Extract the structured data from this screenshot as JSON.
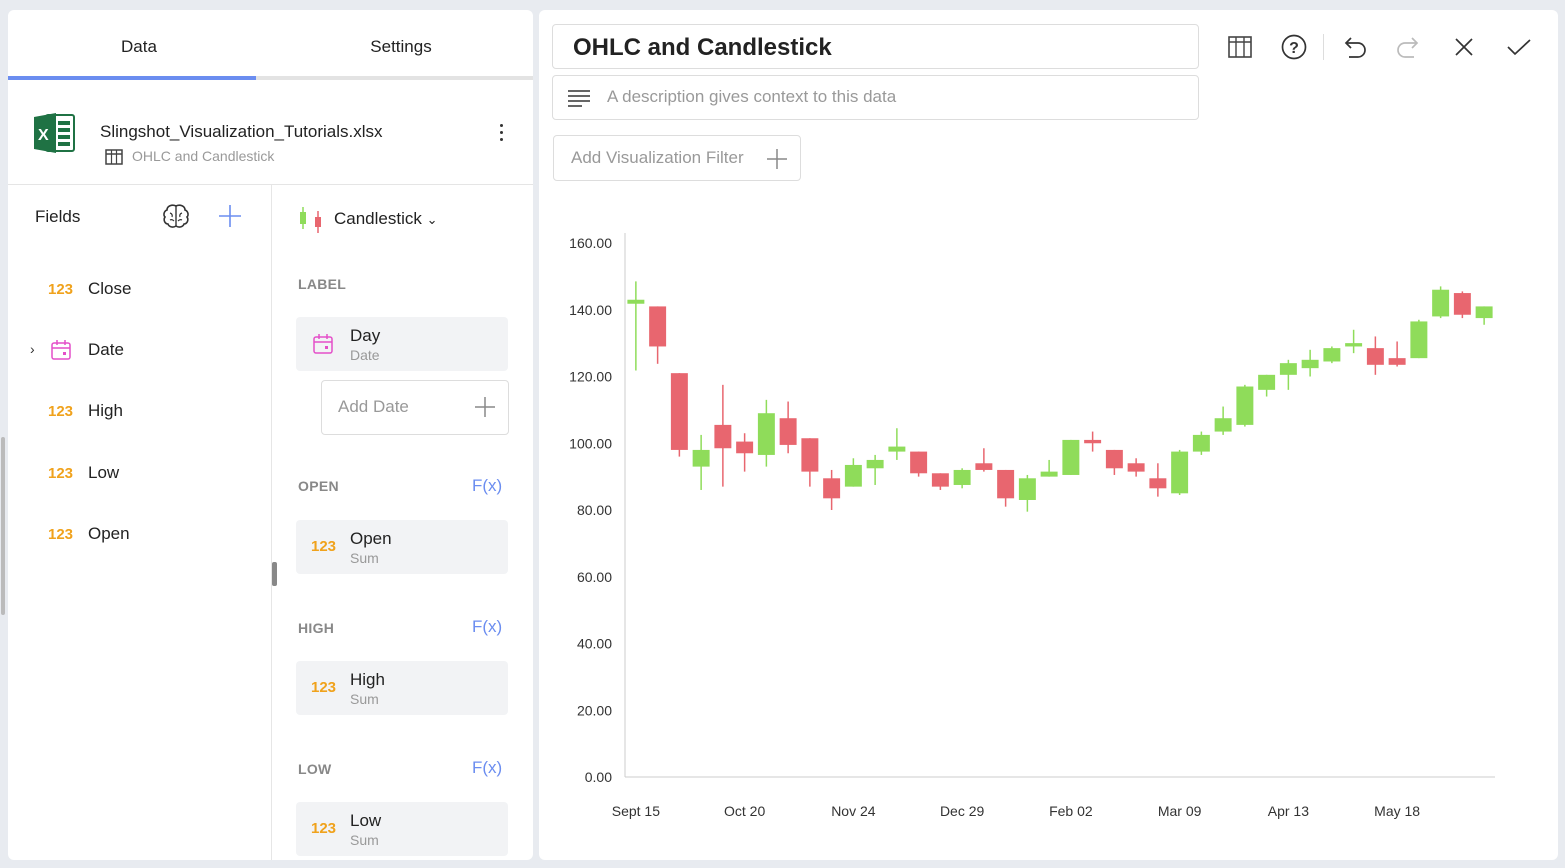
{
  "tabs": [
    {
      "label": "Data",
      "active": true
    },
    {
      "label": "Settings",
      "active": false
    }
  ],
  "file": {
    "name": "Slingshot_Visualization_Tutorials.xlsx",
    "sheet": "OHLC and Candlestick"
  },
  "fields": {
    "title": "Fields",
    "items": [
      {
        "type": "123",
        "label": "Close"
      },
      {
        "type": "date",
        "label": "Date"
      },
      {
        "type": "123",
        "label": "High"
      },
      {
        "type": "123",
        "label": "Low"
      },
      {
        "type": "123",
        "label": "Open"
      }
    ]
  },
  "config": {
    "chart_type": "Candlestick",
    "label_section": "LABEL",
    "label_chip": {
      "main": "Day",
      "sub": "Date"
    },
    "add_date": "Add Date",
    "fx": "F(x)",
    "sections": [
      {
        "title": "OPEN",
        "type": "123",
        "main": "Open",
        "sub": "Sum"
      },
      {
        "title": "HIGH",
        "type": "123",
        "main": "High",
        "sub": "Sum"
      },
      {
        "title": "LOW",
        "type": "123",
        "main": "Low",
        "sub": "Sum"
      }
    ]
  },
  "viz": {
    "title": "OHLC and Candlestick",
    "description_placeholder": "A description gives context to this data",
    "filter_label": "Add Visualization Filter"
  },
  "colors": {
    "accent": "#6b8df0",
    "up": "#8fdc5a",
    "down": "#e8666f",
    "number_type": "#f0a21c",
    "date_icon": "#e44fc9"
  },
  "chart_data": {
    "type": "candlestick",
    "y_ticks": [
      "160.00",
      "140.00",
      "120.00",
      "100.00",
      "80.00",
      "60.00",
      "40.00",
      "20.00",
      "0.00"
    ],
    "ylim": [
      0,
      160
    ],
    "x_ticks": [
      "Sept 15",
      "Oct 20",
      "Nov 24",
      "Dec 29",
      "Feb 02",
      "Mar 09",
      "Apr 13",
      "May 18"
    ],
    "candles": [
      {
        "o": 141.8,
        "h": 148.5,
        "l": 121.8,
        "c": 143.0
      },
      {
        "o": 141.0,
        "h": 141.0,
        "l": 123.8,
        "c": 129.0
      },
      {
        "o": 121.0,
        "h": 121.0,
        "l": 96.0,
        "c": 98.0
      },
      {
        "o": 93.0,
        "h": 102.5,
        "l": 86.0,
        "c": 98.0
      },
      {
        "o": 105.5,
        "h": 117.5,
        "l": 87.0,
        "c": 98.5
      },
      {
        "o": 100.5,
        "h": 103.0,
        "l": 91.5,
        "c": 97.0
      },
      {
        "o": 96.5,
        "h": 113.0,
        "l": 93.0,
        "c": 109.0
      },
      {
        "o": 107.5,
        "h": 112.5,
        "l": 97.0,
        "c": 99.5
      },
      {
        "o": 101.5,
        "h": 101.5,
        "l": 87.0,
        "c": 91.5
      },
      {
        "o": 89.5,
        "h": 92.0,
        "l": 80.0,
        "c": 83.5
      },
      {
        "o": 87.0,
        "h": 95.5,
        "l": 87.0,
        "c": 93.5
      },
      {
        "o": 92.5,
        "h": 96.5,
        "l": 87.5,
        "c": 95.0
      },
      {
        "o": 97.5,
        "h": 104.5,
        "l": 95.0,
        "c": 99.0
      },
      {
        "o": 97.5,
        "h": 97.5,
        "l": 90.0,
        "c": 91.0
      },
      {
        "o": 91.0,
        "h": 91.0,
        "l": 86.0,
        "c": 87.0
      },
      {
        "o": 87.5,
        "h": 92.5,
        "l": 86.5,
        "c": 92.0
      },
      {
        "o": 94.0,
        "h": 98.5,
        "l": 91.5,
        "c": 92.0
      },
      {
        "o": 92.0,
        "h": 92.0,
        "l": 81.0,
        "c": 83.5
      },
      {
        "o": 83.0,
        "h": 90.5,
        "l": 79.5,
        "c": 89.5
      },
      {
        "o": 90.0,
        "h": 95.0,
        "l": 90.0,
        "c": 91.5
      },
      {
        "o": 90.5,
        "h": 101.0,
        "l": 90.5,
        "c": 101.0
      },
      {
        "o": 101.0,
        "h": 103.5,
        "l": 97.5,
        "c": 100.0
      },
      {
        "o": 98.0,
        "h": 98.0,
        "l": 90.5,
        "c": 92.5
      },
      {
        "o": 94.0,
        "h": 95.5,
        "l": 90.0,
        "c": 91.5
      },
      {
        "o": 89.5,
        "h": 94.0,
        "l": 84.0,
        "c": 86.5
      },
      {
        "o": 85.0,
        "h": 98.0,
        "l": 84.5,
        "c": 97.5
      },
      {
        "o": 97.5,
        "h": 103.5,
        "l": 96.5,
        "c": 102.5
      },
      {
        "o": 103.5,
        "h": 111.0,
        "l": 102.5,
        "c": 107.5
      },
      {
        "o": 105.5,
        "h": 117.5,
        "l": 105.0,
        "c": 117.0
      },
      {
        "o": 116.0,
        "h": 120.5,
        "l": 114.0,
        "c": 120.5
      },
      {
        "o": 120.5,
        "h": 125.0,
        "l": 116.0,
        "c": 124.0
      },
      {
        "o": 122.5,
        "h": 128.0,
        "l": 120.0,
        "c": 125.0
      },
      {
        "o": 124.5,
        "h": 129.0,
        "l": 124.0,
        "c": 128.5
      },
      {
        "o": 129.0,
        "h": 134.0,
        "l": 127.0,
        "c": 130.0
      },
      {
        "o": 128.5,
        "h": 132.0,
        "l": 120.5,
        "c": 123.5
      },
      {
        "o": 125.5,
        "h": 130.5,
        "l": 123.0,
        "c": 123.5
      },
      {
        "o": 125.5,
        "h": 137.0,
        "l": 125.5,
        "c": 136.5
      },
      {
        "o": 138.0,
        "h": 147.0,
        "l": 137.5,
        "c": 146.0
      },
      {
        "o": 145.0,
        "h": 145.5,
        "l": 137.5,
        "c": 138.5
      },
      {
        "o": 137.5,
        "h": 141.0,
        "l": 135.5,
        "c": 141.0
      }
    ]
  }
}
